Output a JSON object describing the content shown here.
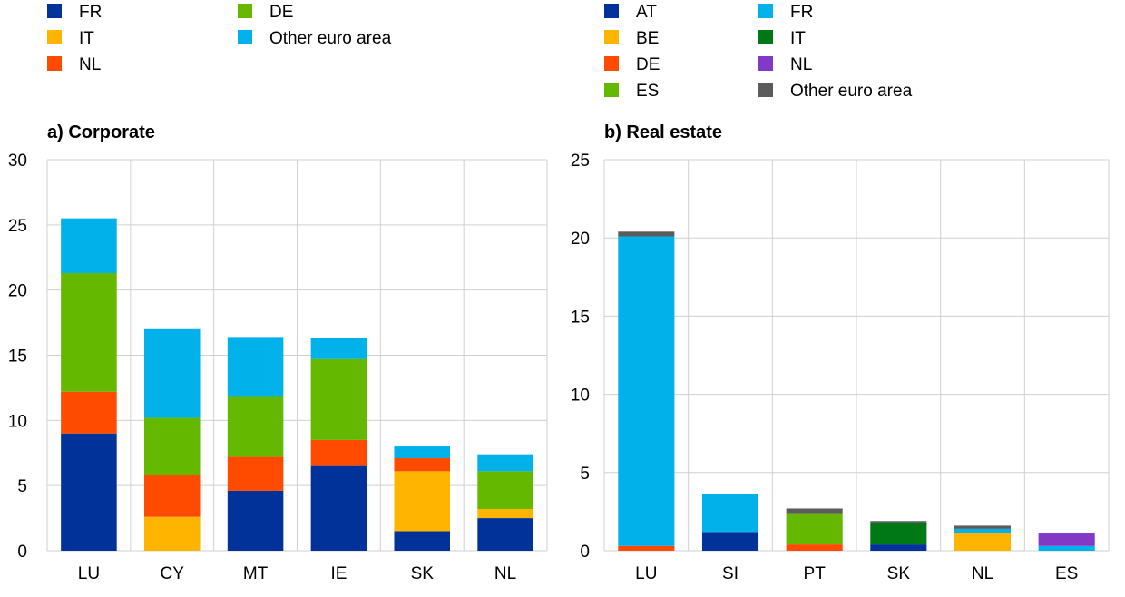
{
  "chart_data": [
    {
      "type": "bar",
      "stacked": true,
      "title": "a) Corporate",
      "categories": [
        "LU",
        "CY",
        "MT",
        "IE",
        "SK",
        "NL"
      ],
      "ylim": [
        0,
        30
      ],
      "yticks": [
        0,
        5,
        10,
        15,
        20,
        25,
        30
      ],
      "grid": true,
      "legend": "top",
      "series": [
        {
          "name": "FR",
          "color": "#003299",
          "values": [
            9.0,
            0.0,
            4.6,
            6.5,
            1.5,
            2.5
          ]
        },
        {
          "name": "IT",
          "color": "#FFB400",
          "values": [
            0.0,
            2.6,
            0.0,
            0.0,
            4.6,
            0.7
          ]
        },
        {
          "name": "NL",
          "color": "#FF4B00",
          "values": [
            3.2,
            3.2,
            2.6,
            2.0,
            1.0,
            0.0
          ]
        },
        {
          "name": "DE",
          "color": "#65B800",
          "values": [
            9.1,
            4.4,
            4.6,
            6.2,
            0.0,
            2.9
          ]
        },
        {
          "name": "Other euro area",
          "color": "#00B1EA",
          "values": [
            4.2,
            6.8,
            4.6,
            1.6,
            0.9,
            1.3
          ]
        }
      ]
    },
    {
      "type": "bar",
      "stacked": true,
      "title": "b) Real estate",
      "categories": [
        "LU",
        "SI",
        "PT",
        "SK",
        "NL",
        "ES"
      ],
      "ylim": [
        0,
        25
      ],
      "yticks": [
        0,
        5,
        10,
        15,
        20,
        25
      ],
      "grid": true,
      "legend": "top",
      "series": [
        {
          "name": "AT",
          "color": "#003299",
          "values": [
            0.0,
            1.2,
            0.0,
            0.4,
            0.0,
            0.0
          ]
        },
        {
          "name": "BE",
          "color": "#FFB400",
          "values": [
            0.0,
            0.0,
            0.0,
            0.0,
            1.1,
            0.0
          ]
        },
        {
          "name": "DE",
          "color": "#FF4B00",
          "values": [
            0.3,
            0.0,
            0.4,
            0.0,
            0.0,
            0.0
          ]
        },
        {
          "name": "ES",
          "color": "#65B800",
          "values": [
            0.0,
            0.0,
            2.0,
            0.0,
            0.0,
            0.0
          ]
        },
        {
          "name": "FR",
          "color": "#00B1EA",
          "values": [
            19.8,
            2.4,
            0.0,
            0.0,
            0.3,
            0.3
          ]
        },
        {
          "name": "IT",
          "color": "#007816",
          "values": [
            0.0,
            0.0,
            0.0,
            1.4,
            0.0,
            0.0
          ]
        },
        {
          "name": "NL",
          "color": "#8139C6",
          "values": [
            0.0,
            0.0,
            0.0,
            0.0,
            0.0,
            0.8
          ]
        },
        {
          "name": "Other euro area",
          "color": "#5C5C5C",
          "values": [
            0.3,
            0.0,
            0.3,
            0.1,
            0.2,
            0.0
          ]
        }
      ]
    }
  ]
}
